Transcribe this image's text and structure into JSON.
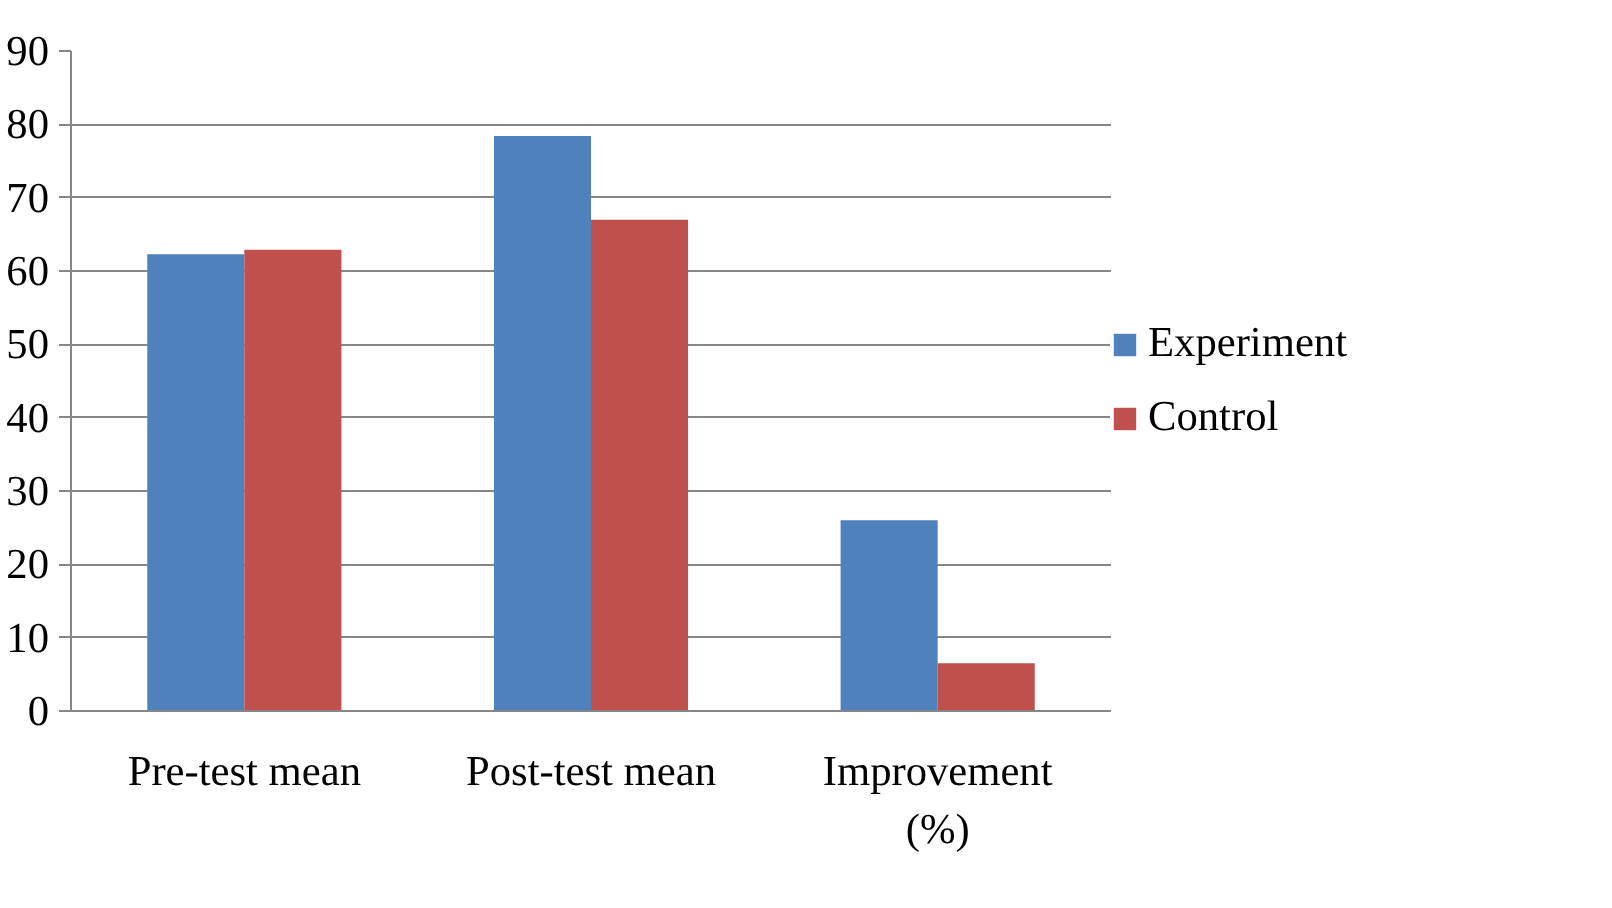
{
  "chart_data": {
    "type": "bar",
    "categories": [
      "Pre-test mean",
      "Post-test mean",
      "Improvement (%)"
    ],
    "series": [
      {
        "name": "Experiment",
        "color": "#4f81bd",
        "values": [
          62.3,
          78.4,
          26
        ]
      },
      {
        "name": "Control",
        "color": "#c0504d",
        "values": [
          62.9,
          67,
          6.5
        ]
      }
    ],
    "ylim": [
      0,
      90
    ],
    "yticks": [
      0,
      10,
      20,
      30,
      40,
      50,
      60,
      70,
      80,
      90
    ],
    "grid": "y",
    "legend": "right"
  }
}
